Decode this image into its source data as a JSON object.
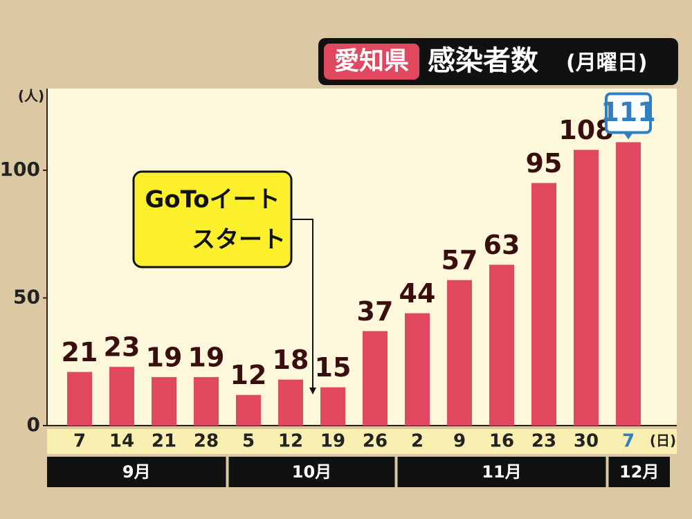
{
  "chart_data": {
    "type": "bar",
    "title_badge": "愛知県",
    "title": "感染者数",
    "subtitle": "(月曜日)",
    "y_unit": "(人)",
    "x_unit": "(日)",
    "annotation": [
      "GoToイート",
      "スタート"
    ],
    "categories": [
      "7",
      "14",
      "21",
      "28",
      "5",
      "12",
      "19",
      "26",
      "2",
      "9",
      "16",
      "23",
      "30",
      "7"
    ],
    "values": [
      21,
      23,
      19,
      19,
      12,
      18,
      15,
      37,
      44,
      57,
      63,
      95,
      108,
      111
    ],
    "month_labels": [
      "9月",
      "10月",
      "11月",
      "12月"
    ],
    "color": "#e0485f",
    "highlight_color": "#2f7fc1",
    "highlight_last": true,
    "ylim": [
      0,
      132
    ],
    "yticks": [
      0,
      50,
      100
    ]
  }
}
